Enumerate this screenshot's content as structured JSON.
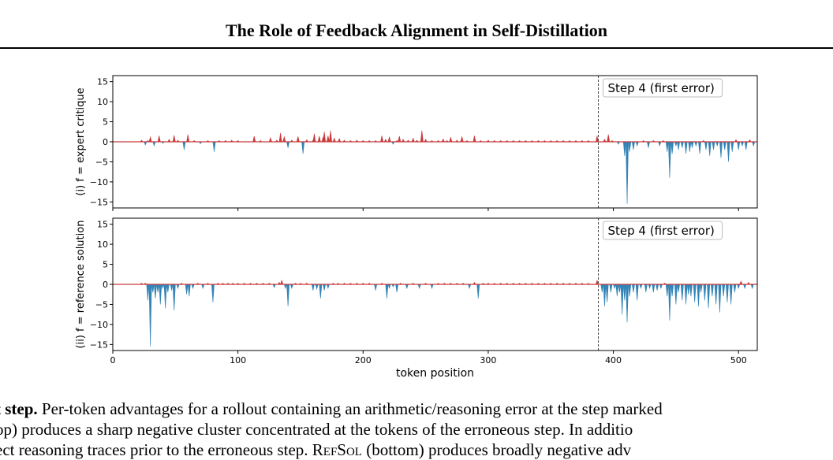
{
  "header": {
    "title": "The Role of Feedback Alignment in Self-Distillation"
  },
  "chart_data": [
    {
      "type": "area",
      "ylabel": "(i) f = expert critique",
      "xlabel": "",
      "xlim": [
        0,
        515
      ],
      "ylim": [
        -16.5,
        16.5
      ],
      "yticks": [
        -15,
        -10,
        -5,
        0,
        5,
        10,
        15
      ],
      "xticks": [
        0,
        100,
        200,
        300,
        400,
        500
      ],
      "show_xtick_labels": false,
      "annotation": {
        "label": "Step 4 (first error)",
        "x": 388
      },
      "colors": {
        "positive": "#c8393a",
        "negative": "#3383b6",
        "line": "#c8393a"
      },
      "spikes": [
        [
          23,
          0.4
        ],
        [
          26,
          -0.8
        ],
        [
          28,
          0.3
        ],
        [
          30,
          1.2
        ],
        [
          33,
          -1.0
        ],
        [
          37,
          1.5
        ],
        [
          40,
          -0.4
        ],
        [
          45,
          0.6
        ],
        [
          49,
          1.6
        ],
        [
          52,
          0.4
        ],
        [
          57,
          -2.0
        ],
        [
          60,
          1.8
        ],
        [
          65,
          0.3
        ],
        [
          70,
          -0.5
        ],
        [
          76,
          0.3
        ],
        [
          81,
          -2.5
        ],
        [
          85,
          0.3
        ],
        [
          90,
          0.3
        ],
        [
          95,
          0.4
        ],
        [
          100,
          0.3
        ],
        [
          113,
          1.4
        ],
        [
          118,
          0.3
        ],
        [
          126,
          1.0
        ],
        [
          131,
          0.4
        ],
        [
          134,
          2.2
        ],
        [
          137,
          1.3
        ],
        [
          140,
          -1.5
        ],
        [
          143,
          0.4
        ],
        [
          148,
          1.3
        ],
        [
          152,
          -3.0
        ],
        [
          155,
          0.5
        ],
        [
          160,
          0.4
        ],
        [
          161,
          2.0
        ],
        [
          165,
          1.4
        ],
        [
          168,
          1.1
        ],
        [
          169,
          2.5
        ],
        [
          172,
          1.5
        ],
        [
          174,
          2.8
        ],
        [
          177,
          0.9
        ],
        [
          181,
          0.8
        ],
        [
          185,
          0.4
        ],
        [
          190,
          0.3
        ],
        [
          195,
          0.4
        ],
        [
          200,
          0.3
        ],
        [
          205,
          0.3
        ],
        [
          210,
          0.3
        ],
        [
          215,
          1.5
        ],
        [
          218,
          0.6
        ],
        [
          221,
          1.2
        ],
        [
          224,
          -0.6
        ],
        [
          227,
          0.3
        ],
        [
          229,
          1.4
        ],
        [
          232,
          0.6
        ],
        [
          236,
          0.4
        ],
        [
          240,
          0.9
        ],
        [
          243,
          0.4
        ],
        [
          247,
          2.8
        ],
        [
          250,
          0.6
        ],
        [
          255,
          0.3
        ],
        [
          260,
          0.3
        ],
        [
          264,
          0.7
        ],
        [
          267,
          0.3
        ],
        [
          270,
          1.1
        ],
        [
          275,
          0.4
        ],
        [
          279,
          1.3
        ],
        [
          283,
          0.3
        ],
        [
          289,
          1.5
        ],
        [
          294,
          0.3
        ],
        [
          300,
          0.4
        ],
        [
          305,
          0.3
        ],
        [
          310,
          0.3
        ],
        [
          315,
          0.3
        ],
        [
          320,
          0.3
        ],
        [
          325,
          0.3
        ],
        [
          330,
          0.3
        ],
        [
          335,
          0.3
        ],
        [
          340,
          0.3
        ],
        [
          345,
          0.3
        ],
        [
          350,
          0.3
        ],
        [
          355,
          0.3
        ],
        [
          360,
          0.3
        ],
        [
          365,
          0.3
        ],
        [
          370,
          0.3
        ],
        [
          375,
          0.3
        ],
        [
          380,
          0.3
        ],
        [
          387,
          1.5
        ],
        [
          393,
          0.6
        ],
        [
          396,
          1.8
        ],
        [
          399,
          0.3
        ],
        [
          404,
          -0.6
        ],
        [
          409,
          -3.5
        ],
        [
          411,
          -15.5
        ],
        [
          413,
          -2.5
        ],
        [
          416,
          -2.0
        ],
        [
          419,
          -1.0
        ],
        [
          424,
          0.3
        ],
        [
          428,
          -1.5
        ],
        [
          432,
          0.3
        ],
        [
          437,
          -1.0
        ],
        [
          440,
          0.3
        ],
        [
          443,
          -2.5
        ],
        [
          445,
          -9.0
        ],
        [
          447,
          -3.0
        ],
        [
          450,
          -1.0
        ],
        [
          452,
          -2.0
        ],
        [
          455,
          -1.5
        ],
        [
          458,
          -3.0
        ],
        [
          461,
          -2.5
        ],
        [
          463,
          -1.5
        ],
        [
          466,
          -1.0
        ],
        [
          469,
          -3.0
        ],
        [
          472,
          0.3
        ],
        [
          474,
          -2.0
        ],
        [
          477,
          -3.5
        ],
        [
          480,
          -2.0
        ],
        [
          483,
          -1.0
        ],
        [
          486,
          -4.0
        ],
        [
          489,
          -2.0
        ],
        [
          492,
          -5.0
        ],
        [
          495,
          -2.5
        ],
        [
          498,
          0.5
        ],
        [
          500,
          -2.0
        ],
        [
          503,
          -1.0
        ],
        [
          506,
          -2.0
        ],
        [
          509,
          0.5
        ],
        [
          512,
          -1.0
        ]
      ]
    },
    {
      "type": "area",
      "ylabel": "(ii) f = reference solution",
      "xlabel": "token position",
      "xlim": [
        0,
        515
      ],
      "ylim": [
        -16.5,
        16.5
      ],
      "yticks": [
        -15,
        -10,
        -5,
        0,
        5,
        10,
        15
      ],
      "xticks": [
        0,
        100,
        200,
        300,
        400,
        500
      ],
      "show_xtick_labels": true,
      "annotation": {
        "label": "Step 4 (first error)",
        "x": 388
      },
      "colors": {
        "positive": "#c8393a",
        "negative": "#3383b6",
        "line": "#c8393a"
      },
      "spikes": [
        [
          23,
          0.3
        ],
        [
          26,
          0.3
        ],
        [
          28,
          -4.0
        ],
        [
          30,
          -15.5
        ],
        [
          32,
          -2.0
        ],
        [
          34,
          -3.5
        ],
        [
          36,
          -2.0
        ],
        [
          38,
          -5.0
        ],
        [
          40,
          -1.0
        ],
        [
          42,
          -6.0
        ],
        [
          44,
          -2.0
        ],
        [
          47,
          -1.5
        ],
        [
          49,
          -6.5
        ],
        [
          52,
          -1.0
        ],
        [
          55,
          0.3
        ],
        [
          59,
          -2.5
        ],
        [
          61,
          -3.0
        ],
        [
          64,
          -1.0
        ],
        [
          68,
          0.3
        ],
        [
          72,
          -1.0
        ],
        [
          76,
          0.3
        ],
        [
          80,
          -4.5
        ],
        [
          84,
          0.3
        ],
        [
          88,
          0.3
        ],
        [
          92,
          0.3
        ],
        [
          96,
          0.3
        ],
        [
          100,
          0.3
        ],
        [
          105,
          0.3
        ],
        [
          110,
          0.3
        ],
        [
          115,
          0.3
        ],
        [
          120,
          0.3
        ],
        [
          125,
          0.3
        ],
        [
          129,
          -0.8
        ],
        [
          133,
          0.5
        ],
        [
          135,
          1.0
        ],
        [
          138,
          -1.0
        ],
        [
          140,
          -5.5
        ],
        [
          143,
          -1.0
        ],
        [
          146,
          0.3
        ],
        [
          150,
          0.3
        ],
        [
          155,
          0.3
        ],
        [
          160,
          -1.5
        ],
        [
          163,
          -1.2
        ],
        [
          166,
          -3.5
        ],
        [
          169,
          -1.5
        ],
        [
          172,
          -1.0
        ],
        [
          176,
          0.3
        ],
        [
          180,
          0.3
        ],
        [
          185,
          0.3
        ],
        [
          190,
          0.3
        ],
        [
          195,
          0.3
        ],
        [
          200,
          0.3
        ],
        [
          205,
          0.3
        ],
        [
          210,
          -1.5
        ],
        [
          215,
          0.3
        ],
        [
          219,
          -3.5
        ],
        [
          221,
          -1.0
        ],
        [
          224,
          -0.6
        ],
        [
          227,
          -2.0
        ],
        [
          230,
          0.3
        ],
        [
          235,
          -1.0
        ],
        [
          240,
          0.3
        ],
        [
          245,
          -1.0
        ],
        [
          250,
          0.3
        ],
        [
          255,
          -1.0
        ],
        [
          260,
          0.3
        ],
        [
          265,
          0.3
        ],
        [
          270,
          0.3
        ],
        [
          275,
          0.3
        ],
        [
          280,
          0.3
        ],
        [
          285,
          -1.0
        ],
        [
          289,
          0.5
        ],
        [
          292,
          -3.5
        ],
        [
          296,
          0.3
        ],
        [
          300,
          0.3
        ],
        [
          305,
          0.3
        ],
        [
          310,
          0.3
        ],
        [
          315,
          0.3
        ],
        [
          320,
          0.3
        ],
        [
          325,
          0.3
        ],
        [
          330,
          0.3
        ],
        [
          335,
          0.3
        ],
        [
          340,
          0.3
        ],
        [
          345,
          0.3
        ],
        [
          350,
          0.3
        ],
        [
          355,
          0.3
        ],
        [
          360,
          0.3
        ],
        [
          365,
          0.3
        ],
        [
          370,
          0.3
        ],
        [
          375,
          0.3
        ],
        [
          380,
          0.3
        ],
        [
          387,
          1.0
        ],
        [
          391,
          -2.0
        ],
        [
          393,
          -5.5
        ],
        [
          395,
          -4.5
        ],
        [
          398,
          -2.0
        ],
        [
          401,
          -1.0
        ],
        [
          403,
          -3.0
        ],
        [
          405,
          -2.0
        ],
        [
          407,
          -7.5
        ],
        [
          409,
          -4.0
        ],
        [
          411,
          -9.5
        ],
        [
          413,
          -3.0
        ],
        [
          416,
          -2.0
        ],
        [
          419,
          -4.0
        ],
        [
          422,
          -1.0
        ],
        [
          426,
          -2.0
        ],
        [
          429,
          -1.0
        ],
        [
          432,
          -2.0
        ],
        [
          435,
          -1.5
        ],
        [
          438,
          -1.0
        ],
        [
          441,
          0.3
        ],
        [
          443,
          -3.0
        ],
        [
          445,
          -9.0
        ],
        [
          447,
          -3.0
        ],
        [
          450,
          -5.0
        ],
        [
          452,
          -2.0
        ],
        [
          455,
          -4.0
        ],
        [
          458,
          -5.0
        ],
        [
          460,
          -2.5
        ],
        [
          462,
          -3.0
        ],
        [
          465,
          -4.5
        ],
        [
          468,
          -5.5
        ],
        [
          470,
          -2.0
        ],
        [
          473,
          -4.0
        ],
        [
          476,
          -6.0
        ],
        [
          479,
          -3.0
        ],
        [
          482,
          -5.0
        ],
        [
          485,
          -7.0
        ],
        [
          488,
          -3.0
        ],
        [
          491,
          -4.5
        ],
        [
          494,
          -5.0
        ],
        [
          497,
          -2.0
        ],
        [
          500,
          -1.0
        ],
        [
          502,
          0.8
        ],
        [
          505,
          -1.0
        ],
        [
          508,
          0.5
        ],
        [
          511,
          -1.0
        ]
      ]
    }
  ],
  "caption": {
    "bold_lead": "t step.",
    "line1_rest": " Per-token advantages for a rollout containing an arithmetic/reasoning error at the step marked",
    "line2": "op) produces a sharp negative cluster concentrated at the tokens of the erroneous step. In additio",
    "line3_pre": "ect reasoning traces prior to the erroneous step. ",
    "line3_sc": "RefSol",
    "line3_post": " (bottom) produces broadly negative adv"
  }
}
